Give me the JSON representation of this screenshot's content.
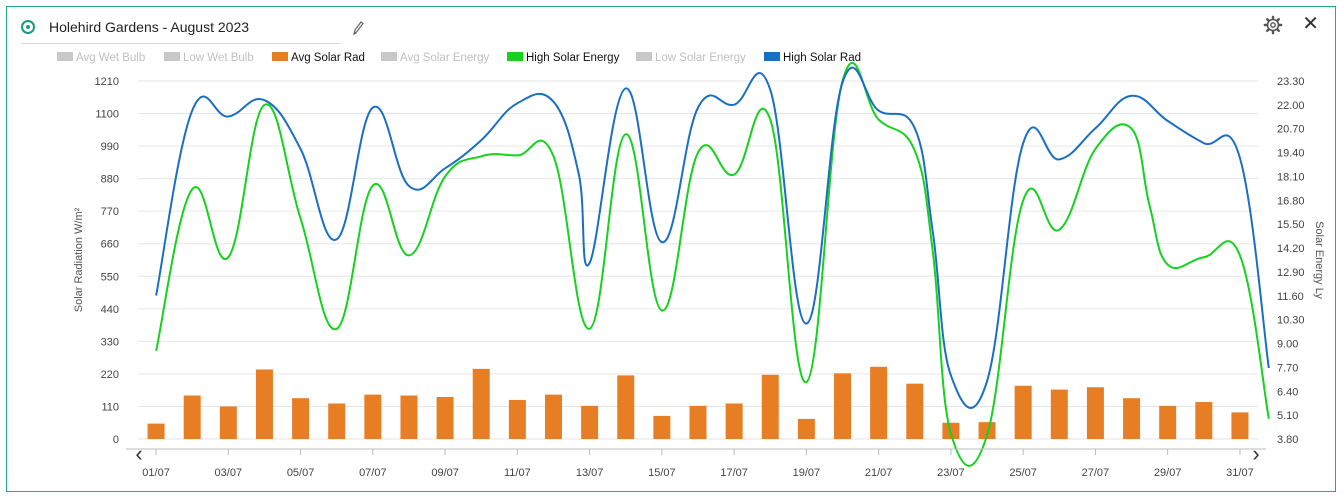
{
  "header": {
    "title": "Holehird Gardens - August 2023"
  },
  "icons": {
    "status": "radio-icon",
    "edit": "pencil-icon",
    "settings": "gear-icon",
    "close": "close-icon",
    "close_glyph": "✕",
    "prev_glyph": "‹",
    "next_glyph": "›"
  },
  "colors": {
    "avg_solar_rad": "#e87e24",
    "high_solar_energy": "#16d21f",
    "high_solar_rad": "#1a6fc4",
    "inactive": "#c8c8c8",
    "frame": "#2aa58a"
  },
  "chart_data": {
    "type": "bar",
    "legend": [
      {
        "name": "Avg Wet Bulb",
        "active": false
      },
      {
        "name": "Low Wet Bulb",
        "active": false
      },
      {
        "name": "Avg Solar Rad",
        "active": true,
        "color": "#e87e24"
      },
      {
        "name": "Avg Solar Energy",
        "active": false
      },
      {
        "name": "High Solar Energy",
        "active": true,
        "color": "#16d21f"
      },
      {
        "name": "Low Solar Energy",
        "active": false
      },
      {
        "name": "High Solar Rad",
        "active": true,
        "color": "#1a6fc4"
      }
    ],
    "ylabel": "Solar Radiation W/m²",
    "y2label": "Solar Energy Ly",
    "ylim": [
      0,
      1210
    ],
    "y2lim": [
      3.8,
      23.3
    ],
    "yticks": [
      "0",
      "110",
      "220",
      "330",
      "440",
      "550",
      "660",
      "770",
      "880",
      "990",
      "1100",
      "1210"
    ],
    "y2ticks": [
      "3.80",
      "5.10",
      "6.40",
      "7.70",
      "9.00",
      "10.30",
      "11.60",
      "12.90",
      "14.20",
      "15.50",
      "16.80",
      "18.10",
      "19.40",
      "20.70",
      "22.00",
      "23.30"
    ],
    "xticks": [
      "01/07",
      "03/07",
      "05/07",
      "07/07",
      "09/07",
      "11/07",
      "13/07",
      "15/07",
      "17/07",
      "19/07",
      "21/07",
      "23/07",
      "25/07",
      "27/07",
      "29/07",
      "31/07"
    ],
    "x": [
      "01/07",
      "02/07",
      "03/07",
      "04/07",
      "05/07",
      "06/07",
      "07/07",
      "08/07",
      "09/07",
      "10/07",
      "11/07",
      "12/07",
      "13/07",
      "14/07",
      "15/07",
      "16/07",
      "17/07",
      "18/07",
      "19/07",
      "20/07",
      "21/07",
      "22/07",
      "23/07",
      "24/07",
      "25/07",
      "26/07",
      "27/07",
      "28/07",
      "29/07",
      "30/07",
      "31/07"
    ],
    "series": [
      {
        "name": "Avg Solar Rad",
        "type": "bar",
        "axis": "left",
        "values": [
          52,
          147,
          110,
          235,
          138,
          120,
          150,
          147,
          142,
          237,
          132,
          150,
          112,
          215,
          78,
          112,
          120,
          217,
          68,
          222,
          244,
          187,
          55,
          57,
          180,
          167,
          175,
          138,
          112,
          125,
          90
        ]
      },
      {
        "name": "High Solar Energy",
        "type": "line",
        "axis": "right",
        "points": [
          {
            "x": 1.0,
            "y": 8.6
          },
          {
            "x": 2.0,
            "y": 17.4
          },
          {
            "x": 3.0,
            "y": 13.7
          },
          {
            "x": 4.0,
            "y": 22.0
          },
          {
            "x": 5.0,
            "y": 15.8
          },
          {
            "x": 6.0,
            "y": 9.8
          },
          {
            "x": 7.0,
            "y": 17.6
          },
          {
            "x": 8.0,
            "y": 13.8
          },
          {
            "x": 9.0,
            "y": 18.1
          },
          {
            "x": 10.0,
            "y": 19.2
          },
          {
            "x": 11.0,
            "y": 19.25
          },
          {
            "x": 12.0,
            "y": 19.2
          },
          {
            "x": 13.0,
            "y": 9.8
          },
          {
            "x": 14.0,
            "y": 20.4
          },
          {
            "x": 15.0,
            "y": 10.8
          },
          {
            "x": 16.0,
            "y": 19.4
          },
          {
            "x": 17.0,
            "y": 18.2
          },
          {
            "x": 18.0,
            "y": 21.2
          },
          {
            "x": 19.0,
            "y": 6.9
          },
          {
            "x": 20.0,
            "y": 23.3
          },
          {
            "x": 21.0,
            "y": 21.2
          },
          {
            "x": 22.0,
            "y": 19.5
          },
          {
            "x": 22.5,
            "y": 14.0
          },
          {
            "x": 23.0,
            "y": 4.1
          },
          {
            "x": 24.0,
            "y": 4.0
          },
          {
            "x": 25.0,
            "y": 16.8
          },
          {
            "x": 26.0,
            "y": 15.2
          },
          {
            "x": 27.0,
            "y": 19.6
          },
          {
            "x": 28.0,
            "y": 20.7
          },
          {
            "x": 28.5,
            "y": 16.5
          },
          {
            "x": 29.0,
            "y": 13.3
          },
          {
            "x": 30.0,
            "y": 13.7
          },
          {
            "x": 31.0,
            "y": 13.8
          },
          {
            "x": 31.8,
            "y": 4.9
          }
        ]
      },
      {
        "name": "High Solar Rad",
        "type": "line",
        "axis": "left",
        "points": [
          {
            "x": 1.0,
            "y": 485
          },
          {
            "x": 2.0,
            "y": 1110
          },
          {
            "x": 3.0,
            "y": 1090
          },
          {
            "x": 4.0,
            "y": 1145
          },
          {
            "x": 5.0,
            "y": 980
          },
          {
            "x": 6.0,
            "y": 675
          },
          {
            "x": 7.0,
            "y": 1120
          },
          {
            "x": 8.0,
            "y": 855
          },
          {
            "x": 9.0,
            "y": 915
          },
          {
            "x": 10.0,
            "y": 1010
          },
          {
            "x": 11.0,
            "y": 1135
          },
          {
            "x": 12.0,
            "y": 1140
          },
          {
            "x": 12.7,
            "y": 895
          },
          {
            "x": 13.0,
            "y": 595
          },
          {
            "x": 14.0,
            "y": 1185
          },
          {
            "x": 15.0,
            "y": 665
          },
          {
            "x": 16.0,
            "y": 1120
          },
          {
            "x": 17.0,
            "y": 1130
          },
          {
            "x": 18.0,
            "y": 1180
          },
          {
            "x": 19.0,
            "y": 390
          },
          {
            "x": 20.0,
            "y": 1205
          },
          {
            "x": 21.0,
            "y": 1110
          },
          {
            "x": 22.0,
            "y": 1050
          },
          {
            "x": 22.5,
            "y": 700
          },
          {
            "x": 23.0,
            "y": 215
          },
          {
            "x": 24.0,
            "y": 195
          },
          {
            "x": 25.0,
            "y": 1000
          },
          {
            "x": 26.0,
            "y": 945
          },
          {
            "x": 27.0,
            "y": 1050
          },
          {
            "x": 28.0,
            "y": 1160
          },
          {
            "x": 29.0,
            "y": 1075
          },
          {
            "x": 30.0,
            "y": 1000
          },
          {
            "x": 31.0,
            "y": 950
          },
          {
            "x": 31.8,
            "y": 240
          }
        ]
      }
    ]
  }
}
